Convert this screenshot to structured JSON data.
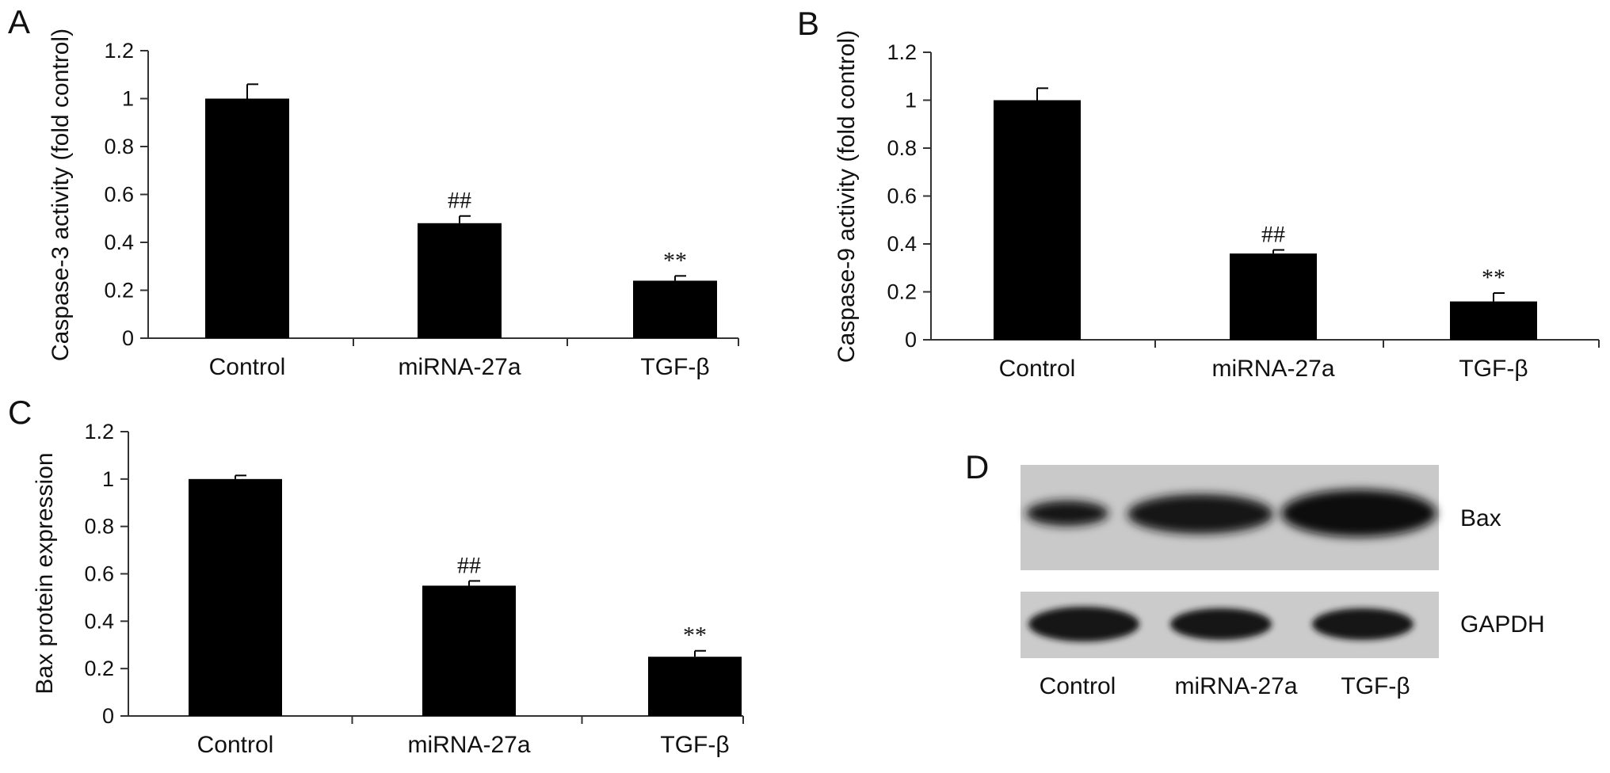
{
  "chart_data": [
    {
      "panel": "A",
      "type": "bar",
      "categories": [
        "Control",
        "miRNA-27a",
        "TGF-β"
      ],
      "values": [
        1.0,
        0.48,
        0.24
      ],
      "errors": [
        0.06,
        0.03,
        0.02
      ],
      "annotations": [
        "",
        "##",
        "**"
      ],
      "ylabel": "Caspase-3 activity (fold control)",
      "ylim": [
        0,
        1.2
      ],
      "yticks": [
        "0",
        "0.2",
        "0.4",
        "0.6",
        "0.8",
        "1",
        "1.2"
      ]
    },
    {
      "panel": "B",
      "type": "bar",
      "categories": [
        "Control",
        "miRNA-27a",
        "TGF-β"
      ],
      "values": [
        1.0,
        0.36,
        0.16
      ],
      "errors": [
        0.05,
        0.015,
        0.035
      ],
      "annotations": [
        "",
        "##",
        "**"
      ],
      "ylabel": "Caspase-9 activity (fold control)",
      "ylim": [
        0,
        1.2
      ],
      "yticks": [
        "0",
        "0.2",
        "0.4",
        "0.6",
        "0.8",
        "1",
        "1.2"
      ]
    },
    {
      "panel": "C",
      "type": "bar",
      "categories": [
        "Control",
        "miRNA-27a",
        "TGF-β"
      ],
      "values": [
        1.0,
        0.55,
        0.25
      ],
      "errors": [
        0.015,
        0.02,
        0.025
      ],
      "annotations": [
        "",
        "##",
        "**"
      ],
      "ylabel": "Bax protein expression",
      "ylim": [
        0,
        1.2
      ],
      "yticks": [
        "0",
        "0.2",
        "0.4",
        "0.6",
        "0.8",
        "1",
        "1.2"
      ]
    }
  ],
  "panel_d": {
    "panel": "D",
    "rows": [
      "Bax",
      "GAPDH"
    ],
    "lanes": [
      "Control",
      "miRNA-27a",
      "TGF-β"
    ]
  }
}
